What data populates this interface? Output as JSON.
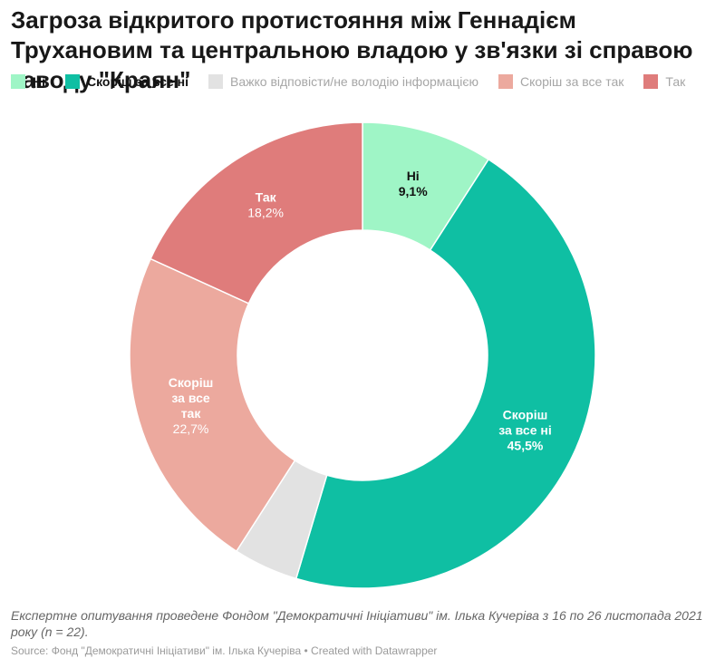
{
  "title": "Загроза відкритого протистояння між Геннадієм Трухановим та центральною владою у зв'язки зі справою заводу \"Краян\"",
  "chart_data": {
    "type": "pie",
    "donut": true,
    "title": "Загроза відкритого протистояння між Геннадієм Трухановим та центральною владою у зв'язки зі справою заводу \"Краян\"",
    "legend_position": "top",
    "slices": [
      {
        "label": "Ні",
        "value": 9.1,
        "display": "9,1%",
        "color": "#9ff5c6",
        "legend_text_color": "#111111",
        "label_color": "#111111",
        "label_lines": [
          "Ні"
        ],
        "show_label": true
      },
      {
        "label": "Скоріш за все ні",
        "value": 45.5,
        "display": "45,5%",
        "color": "#0fbfa3",
        "legend_text_color": "#111111",
        "label_color": "#ffffff",
        "label_lines": [
          "Скоріш",
          "за все ні"
        ],
        "show_label": true
      },
      {
        "label": "Важко відповісти/не володію інформацією",
        "value": 4.5,
        "display": "4,5%",
        "color": "#e2e2e2",
        "legend_text_color": "#a6a6a6",
        "label_color": "#a6a6a6",
        "label_lines": [],
        "show_label": false
      },
      {
        "label": "Скоріш за все так",
        "value": 22.7,
        "display": "22,7%",
        "color": "#eca99e",
        "legend_text_color": "#a6a6a6",
        "label_color": "#ffffff",
        "label_lines": [
          "Скоріш",
          "за все",
          "так"
        ],
        "show_label": true
      },
      {
        "label": "Так",
        "value": 18.2,
        "display": "18,2%",
        "color": "#df7c7b",
        "legend_text_color": "#a6a6a6",
        "label_color": "#ffffff",
        "label_lines": [
          "Так"
        ],
        "show_label": true
      }
    ]
  },
  "notes": "Експертне опитування проведене Фондом \"Демократичні Ініціативи\" ім. Ілька Кучеріва з 16 по 26 листопада 2021 року (n = 22).",
  "source": "Source: Фонд \"Демократичні Ініціативи\" ім. Ілька Кучеріва • Created with Datawrapper"
}
